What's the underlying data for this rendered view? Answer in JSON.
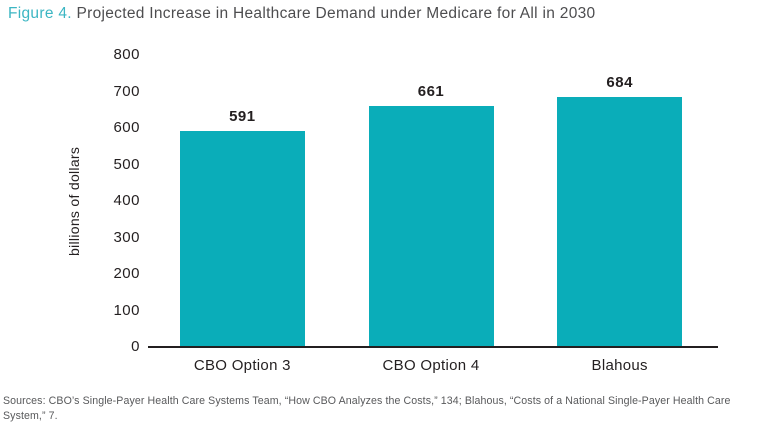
{
  "title": {
    "prefix": "Figure 4.",
    "main": "Projected Increase in Healthcare Demand under Medicare for All in 2030"
  },
  "colors": {
    "bar": "#0AADB9",
    "title_prefix": "#3CB6C3",
    "title_text": "#4D4D4F",
    "axis_text": "#231F20",
    "source_text": "#58595B"
  },
  "chart_data": {
    "type": "bar",
    "categories": [
      "CBO Option 3",
      "CBO Option 4",
      "Blahous"
    ],
    "values": [
      591,
      661,
      684
    ],
    "data_labels": [
      "591",
      "661",
      "684"
    ],
    "title": "Figure 4. Projected Increase in Healthcare Demand under Medicare for All in 2030",
    "xlabel": "",
    "ylabel": "billions of dollars",
    "ylim": [
      0,
      800
    ],
    "yticks": [
      0,
      100,
      200,
      300,
      400,
      500,
      600,
      700,
      800
    ],
    "grid": false,
    "legend": false,
    "bar_color": "#0AADB9"
  },
  "source_note": "Sources: CBO’s Single-Payer Health Care Systems Team, “How CBO Analyzes the Costs,” 134; Blahous, “Costs of a National Single-Payer Health Care System,” 7."
}
